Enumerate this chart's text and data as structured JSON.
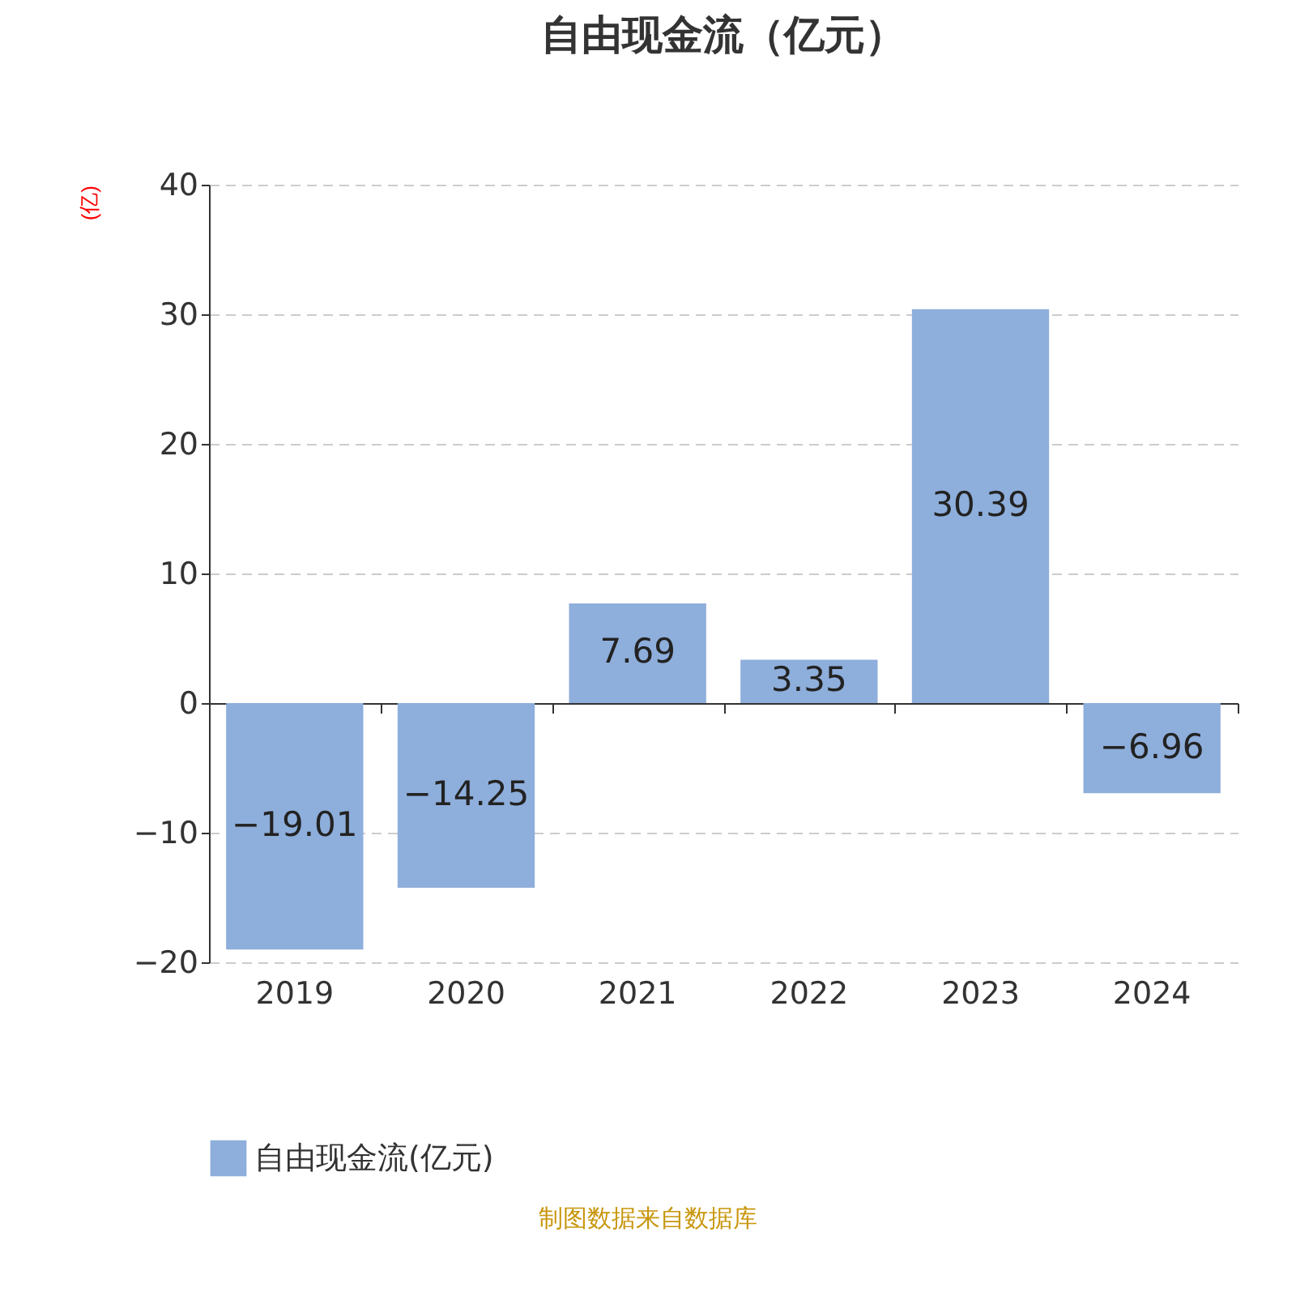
{
  "chart_data": {
    "type": "bar",
    "title": "自由现金流（亿元）",
    "ylabel": "(亿)",
    "categories": [
      "2019",
      "2020",
      "2021",
      "2022",
      "2023",
      "2024"
    ],
    "series": [
      {
        "name": "自由现金流(亿元)",
        "color": "#8eaedb",
        "values": [
          -19.01,
          -14.25,
          7.69,
          3.35,
          30.39,
          -6.96
        ]
      }
    ],
    "ylim": [
      -20,
      40
    ],
    "yticks": [
      -20,
      -10,
      0,
      10,
      20,
      30,
      40
    ],
    "grid": "y",
    "legend": "bottom",
    "data_labels": true,
    "annotations": [
      "制图数据来自数据库"
    ]
  }
}
